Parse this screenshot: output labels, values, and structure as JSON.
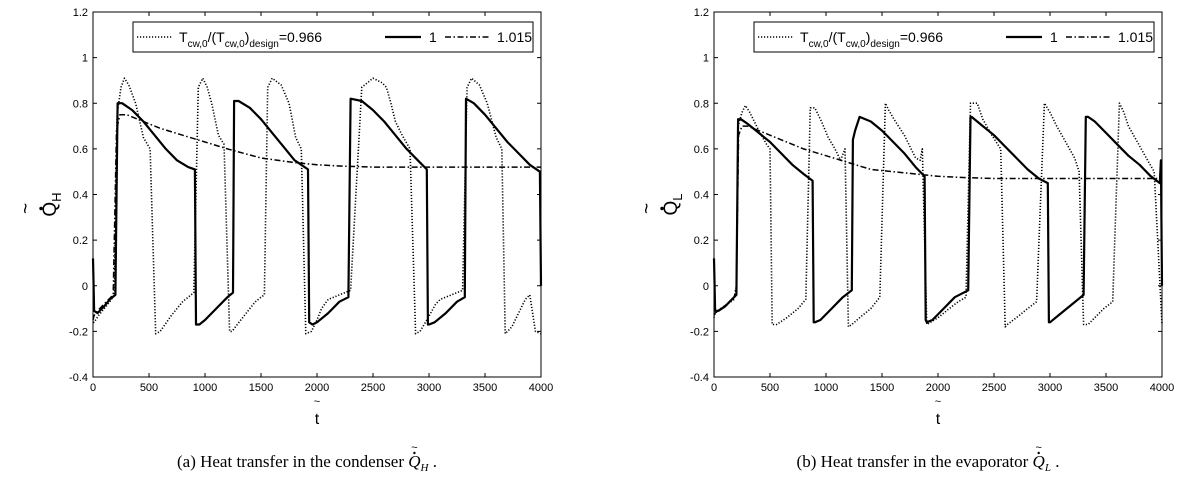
{
  "chart_data": [
    {
      "type": "line",
      "caption_prefix": "(a) Heat transfer in the condenser ",
      "caption_symbol": "Q",
      "caption_subscript": "H",
      "caption_suffix": " .",
      "xlabel": "t",
      "xlabel_tilde": "~",
      "ylabel_main": "Q",
      "ylabel_sub": "H",
      "ylabel_tilde": "~",
      "xlim": [
        0,
        4000
      ],
      "ylim": [
        -0.4,
        1.2
      ],
      "xticks": [
        0,
        500,
        1000,
        1500,
        2000,
        2500,
        3000,
        3500,
        4000
      ],
      "yticks": [
        -0.4,
        -0.2,
        0,
        0.2,
        0.4,
        0.6,
        0.8,
        1,
        1.2
      ],
      "xtick_labels": [
        "0",
        "500",
        "1000",
        "1500",
        "2000",
        "2500",
        "3000",
        "3500",
        "4000"
      ],
      "ytick_labels": [
        "-0.4",
        "-0.2",
        "0",
        "0.2",
        "0.4",
        "0.6",
        "0.8",
        "1",
        "1.2"
      ],
      "grid": false,
      "legend": {
        "position": "top",
        "prefix_T": "T",
        "sub_1": "cw,0",
        "mid": "/(T",
        "sub_2": "cw,0",
        "close": ")",
        "sub_3": "design",
        "first_value": "=0.966",
        "entries": [
          "1",
          "1.015"
        ]
      },
      "series": [
        {
          "style": "dotted",
          "x": [
            0,
            10,
            50,
            100,
            150,
            190,
            215,
            250,
            280,
            320,
            380,
            450,
            510,
            560,
            600,
            700,
            800,
            850,
            900,
            940,
            980,
            1000,
            1020,
            1060,
            1120,
            1170,
            1220,
            1240,
            1320,
            1400,
            1450,
            1500,
            1530,
            1560,
            1600,
            1680,
            1750,
            1810,
            1860,
            1900,
            1950,
            2000,
            2040,
            2100,
            2150,
            2200,
            2300,
            2400,
            2500,
            2580,
            2620,
            2660,
            2700,
            2760,
            2830,
            2880,
            2920,
            2980,
            3060,
            3100,
            3200,
            3300,
            3340,
            3380,
            3450,
            3520,
            3600,
            3650,
            3680,
            3740,
            3820,
            3860,
            3900,
            3950,
            4000
          ],
          "y": [
            -0.16,
            -0.16,
            -0.13,
            -0.1,
            -0.07,
            -0.04,
            0.75,
            0.87,
            0.91,
            0.88,
            0.8,
            0.65,
            0.6,
            -0.21,
            -0.2,
            -0.13,
            -0.07,
            -0.05,
            -0.03,
            0.87,
            0.91,
            0.89,
            0.87,
            0.8,
            0.66,
            0.62,
            -0.2,
            -0.2,
            -0.15,
            -0.1,
            -0.07,
            -0.05,
            -0.04,
            0.87,
            0.91,
            0.88,
            0.8,
            0.65,
            0.6,
            -0.21,
            -0.2,
            -0.15,
            -0.1,
            -0.06,
            -0.05,
            -0.04,
            -0.02,
            0.87,
            0.91,
            0.89,
            0.87,
            0.8,
            0.72,
            0.66,
            0.6,
            -0.21,
            -0.2,
            -0.15,
            -0.08,
            -0.06,
            -0.04,
            -0.02,
            0.87,
            0.91,
            0.88,
            0.8,
            0.65,
            0.6,
            -0.21,
            -0.18,
            -0.1,
            -0.06,
            -0.04,
            -0.2,
            -0.21
          ]
        },
        {
          "style": "solid",
          "x": [
            0,
            5,
            10,
            40,
            100,
            150,
            200,
            220,
            260,
            350,
            450,
            550,
            650,
            750,
            850,
            910,
            920,
            950,
            1000,
            1100,
            1200,
            1250,
            1260,
            1300,
            1400,
            1500,
            1600,
            1700,
            1800,
            1920,
            1930,
            1960,
            2000,
            2100,
            2200,
            2280,
            2300,
            2400,
            2500,
            2600,
            2700,
            2800,
            2900,
            2980,
            2990,
            3000,
            3050,
            3150,
            3250,
            3320,
            3330,
            3400,
            3500,
            3600,
            3700,
            3800,
            3900,
            3990,
            4000
          ],
          "y": [
            0.12,
            0.0,
            -0.11,
            -0.12,
            -0.09,
            -0.06,
            -0.04,
            0.8,
            0.8,
            0.77,
            0.72,
            0.66,
            0.6,
            0.55,
            0.52,
            0.51,
            -0.17,
            -0.17,
            -0.15,
            -0.1,
            -0.05,
            -0.03,
            0.81,
            0.81,
            0.78,
            0.73,
            0.67,
            0.61,
            0.55,
            0.51,
            -0.16,
            -0.17,
            -0.16,
            -0.12,
            -0.07,
            -0.05,
            0.82,
            0.81,
            0.77,
            0.72,
            0.66,
            0.6,
            0.55,
            0.51,
            -0.17,
            -0.17,
            -0.16,
            -0.12,
            -0.07,
            -0.05,
            0.82,
            0.8,
            0.75,
            0.69,
            0.63,
            0.58,
            0.53,
            0.5,
            0.0
          ]
        },
        {
          "style": "dashdot",
          "x": [
            0,
            10,
            60,
            120,
            180,
            210,
            240,
            300,
            400,
            500,
            600,
            800,
            1000,
            1200,
            1500,
            1800,
            2000,
            2200,
            2500,
            3000,
            3500,
            4000
          ],
          "y": [
            -0.15,
            -0.13,
            -0.1,
            -0.07,
            -0.04,
            0.68,
            0.75,
            0.75,
            0.73,
            0.71,
            0.69,
            0.66,
            0.63,
            0.6,
            0.56,
            0.54,
            0.53,
            0.525,
            0.52,
            0.52,
            0.52,
            0.52
          ]
        }
      ]
    },
    {
      "type": "line",
      "caption_prefix": "(b) Heat transfer in the evaporator ",
      "caption_symbol": "Q",
      "caption_subscript": "L",
      "caption_suffix": " .",
      "xlabel": "t",
      "xlabel_tilde": "~",
      "ylabel_main": "Q",
      "ylabel_sub": "L",
      "ylabel_tilde": "~",
      "xlim": [
        0,
        4000
      ],
      "ylim": [
        -0.4,
        1.2
      ],
      "xticks": [
        0,
        500,
        1000,
        1500,
        2000,
        2500,
        3000,
        3500,
        4000
      ],
      "yticks": [
        -0.4,
        -0.2,
        0,
        0.2,
        0.4,
        0.6,
        0.8,
        1,
        1.2
      ],
      "xtick_labels": [
        "0",
        "500",
        "1000",
        "1500",
        "2000",
        "2500",
        "3000",
        "3500",
        "4000"
      ],
      "ytick_labels": [
        "-0.4",
        "-0.2",
        "0",
        "0.2",
        "0.4",
        "0.6",
        "0.8",
        "1",
        "1.2"
      ],
      "grid": false,
      "legend": {
        "position": "top",
        "prefix_T": "T",
        "sub_1": "cw,0",
        "mid": "/(T",
        "sub_2": "cw,0",
        "close": ")",
        "sub_3": "design",
        "first_value": "=0.966",
        "entries": [
          "1",
          "1.015"
        ]
      },
      "series": [
        {
          "style": "dotted",
          "x": [
            0,
            10,
            60,
            120,
            180,
            200,
            215,
            250,
            280,
            320,
            400,
            470,
            500,
            520,
            560,
            650,
            750,
            820,
            860,
            900,
            960,
            1020,
            1080,
            1130,
            1170,
            1200,
            1230,
            1300,
            1400,
            1480,
            1530,
            1560,
            1620,
            1700,
            1760,
            1800,
            1840,
            1860,
            1900,
            2000,
            2100,
            2180,
            2250,
            2290,
            2350,
            2400,
            2480,
            2560,
            2600,
            2620,
            2700,
            2800,
            2880,
            2950,
            3000,
            3060,
            3140,
            3220,
            3260,
            3300,
            3340,
            3400,
            3480,
            3560,
            3620,
            3660,
            3700,
            3780,
            3860,
            3930,
            4000
          ],
          "y": [
            -0.14,
            -0.12,
            -0.1,
            -0.08,
            -0.06,
            0.0,
            0.7,
            0.76,
            0.79,
            0.76,
            0.68,
            0.62,
            0.6,
            -0.17,
            -0.17,
            -0.14,
            -0.1,
            -0.06,
            0.78,
            0.78,
            0.72,
            0.65,
            0.6,
            0.55,
            0.6,
            -0.18,
            -0.17,
            -0.14,
            -0.1,
            -0.05,
            0.8,
            0.77,
            0.72,
            0.66,
            0.6,
            0.56,
            0.55,
            0.6,
            -0.17,
            -0.14,
            -0.1,
            -0.07,
            -0.05,
            0.8,
            0.8,
            0.73,
            0.66,
            0.6,
            -0.18,
            -0.17,
            -0.14,
            -0.1,
            -0.07,
            0.8,
            0.76,
            0.7,
            0.63,
            0.56,
            0.5,
            -0.17,
            -0.17,
            -0.14,
            -0.1,
            -0.07,
            0.8,
            0.76,
            0.7,
            0.63,
            0.56,
            0.5,
            -0.17
          ]
        },
        {
          "style": "solid",
          "x": [
            0,
            5,
            10,
            40,
            100,
            160,
            200,
            215,
            240,
            300,
            400,
            500,
            600,
            700,
            800,
            880,
            890,
            900,
            950,
            1050,
            1150,
            1230,
            1240,
            1260,
            1300,
            1400,
            1500,
            1600,
            1700,
            1800,
            1880,
            1890,
            1900,
            1950,
            2050,
            2150,
            2270,
            2290,
            2300,
            2400,
            2500,
            2600,
            2700,
            2800,
            2900,
            2980,
            2990,
            3000,
            3100,
            3200,
            3300,
            3320,
            3340,
            3400,
            3500,
            3600,
            3700,
            3800,
            3900,
            3980,
            3990,
            4000
          ],
          "y": [
            0.12,
            0.0,
            -0.11,
            -0.11,
            -0.09,
            -0.06,
            -0.04,
            0.73,
            0.73,
            0.71,
            0.67,
            0.63,
            0.58,
            0.53,
            0.49,
            0.46,
            -0.16,
            -0.16,
            -0.15,
            -0.1,
            -0.05,
            -0.02,
            0.64,
            0.68,
            0.74,
            0.72,
            0.68,
            0.63,
            0.58,
            0.52,
            0.48,
            -0.15,
            -0.16,
            -0.15,
            -0.1,
            -0.05,
            -0.02,
            0.74,
            0.74,
            0.7,
            0.66,
            0.61,
            0.56,
            0.51,
            0.47,
            0.45,
            -0.16,
            -0.16,
            -0.12,
            -0.08,
            -0.04,
            0.74,
            0.74,
            0.72,
            0.67,
            0.62,
            0.57,
            0.53,
            0.48,
            0.45,
            0.55,
            0.0
          ]
        },
        {
          "style": "dashdot",
          "x": [
            0,
            10,
            60,
            120,
            180,
            200,
            220,
            250,
            300,
            400,
            500,
            600,
            800,
            1000,
            1200,
            1400,
            1600,
            1800,
            2000,
            2200,
            2500,
            3000,
            3500,
            4000
          ],
          "y": [
            -0.13,
            -0.12,
            -0.1,
            -0.08,
            -0.05,
            0.0,
            0.66,
            0.7,
            0.7,
            0.68,
            0.66,
            0.64,
            0.6,
            0.57,
            0.54,
            0.51,
            0.5,
            0.49,
            0.48,
            0.475,
            0.47,
            0.47,
            0.47,
            0.47
          ]
        }
      ]
    }
  ]
}
